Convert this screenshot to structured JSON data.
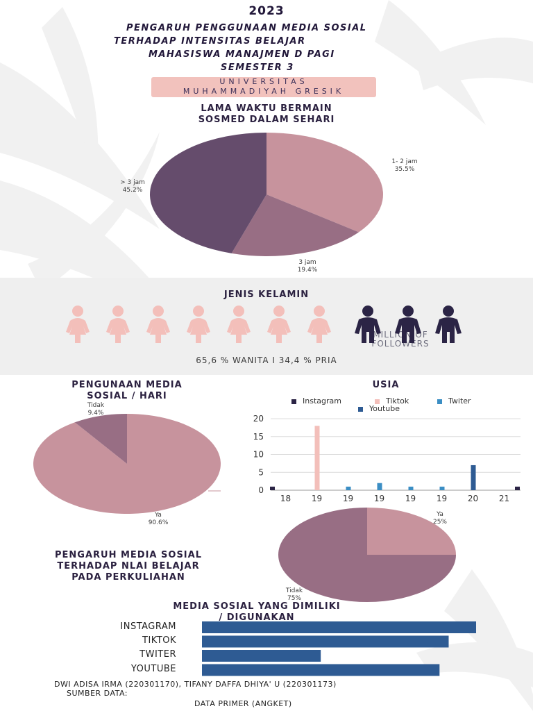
{
  "header": {
    "year": "2023",
    "title_lines": [
      "PENGARUH PENGGUNAAN MEDIA SOSIAL",
      "TERHADAP INTENSITAS  BELAJAR",
      "MAHASISWA MANAJMEN D PAGI",
      "SEMESTER 3"
    ],
    "university_lines": [
      "UNIVERSITAS",
      "MUHAMMADIYAH GRESIK"
    ]
  },
  "colors": {
    "dark_purple": "#654c6c",
    "mauve": "#986e84",
    "pink": "#c7939d",
    "female": "#f3bfba",
    "male": "#2b2445",
    "bar_blue": "#2e5b93"
  },
  "sections": {
    "time": [
      "LAMA WAKTU BERMAIN",
      "SOSMED DALAM SEHARI"
    ],
    "gender_title": "JENIS KELAMIN",
    "gender_stat": "65,6 % WANITA  I  34,4 % PRIA",
    "gender_ghost": [
      "MILLION OF",
      "FOLLOWERS"
    ],
    "usage": [
      "PENGUNAAN MEDIA",
      "SOSIAL / HARI"
    ],
    "age": "USIA",
    "influence": [
      "PENGARUH MEDIA SOSIAL",
      "TERHADAP NLAI BELAJAR",
      "PADA PERKULIAHAN"
    ],
    "owned": [
      "MEDIA SOSIAL YANG DIMILIKI",
      "/ DIGUNAKAN"
    ]
  },
  "footer": {
    "authors": "DWI ADISA IRMA (220301170), TIFANY DAFFA DHIYA' U (220301173)",
    "source_label": "SUMBER DATA:",
    "source_value": "DATA PRIMER (ANGKET)"
  },
  "chart_data": [
    {
      "type": "pie",
      "slices": [
        {
          "label": "1- 2 jam",
          "pct_label": "35.5%",
          "value": 35.5,
          "color": "#c7939d"
        },
        {
          "label": "3 jam",
          "pct_label": "19.4%",
          "value": 19.4,
          "color": "#986e84"
        },
        {
          "label": "> 3 jam",
          "pct_label": "45.2%",
          "value": 45.2,
          "color": "#654c6c"
        }
      ]
    },
    {
      "type": "pictogram",
      "categories": [
        "Wanita",
        "Pria"
      ],
      "values": [
        65.6,
        34.4
      ],
      "icon_counts": [
        7,
        3
      ]
    },
    {
      "type": "pie",
      "slices": [
        {
          "label": "Ya",
          "pct_label": "90.6%",
          "value": 90.6,
          "color": "#c7939d"
        },
        {
          "label": "Tidak",
          "pct_label": "9.4%",
          "value": 9.4,
          "color": "#986e84"
        }
      ]
    },
    {
      "type": "bar",
      "categories": [
        "18",
        "19",
        "19",
        "19",
        "19",
        "19",
        "20",
        "21"
      ],
      "series": [
        {
          "name": "Instagram",
          "color": "#2b2445",
          "values": [
            1,
            0,
            0,
            0,
            0,
            0,
            0,
            1
          ]
        },
        {
          "name": "Tiktok",
          "color": "#f3bfba",
          "values": [
            0,
            18,
            0,
            0,
            0,
            0,
            0,
            0
          ]
        },
        {
          "name": "Twiter",
          "color": "#3b8ec4",
          "values": [
            0,
            0,
            1,
            2,
            1,
            1,
            0,
            0
          ]
        },
        {
          "name": "Youtube",
          "color": "#2e5b93",
          "values": [
            0,
            0,
            0,
            0,
            0,
            0,
            7,
            0
          ]
        }
      ],
      "yticks": [
        0,
        5,
        10,
        15,
        20
      ],
      "ylim": [
        0,
        20
      ],
      "grid": true,
      "legend": "top"
    },
    {
      "type": "pie",
      "slices": [
        {
          "label": "Ya",
          "pct_label": "25%",
          "value": 25,
          "color": "#c7939d"
        },
        {
          "label": "Tidak",
          "pct_label": "75%",
          "value": 75,
          "color": "#986e84"
        }
      ]
    },
    {
      "type": "bar",
      "orientation": "horizontal",
      "categories": [
        "INSTAGRAM",
        "TIKTOK",
        "TWITER",
        "YOUTUBE"
      ],
      "values": [
        30,
        27,
        13,
        26
      ],
      "max": 30
    }
  ]
}
